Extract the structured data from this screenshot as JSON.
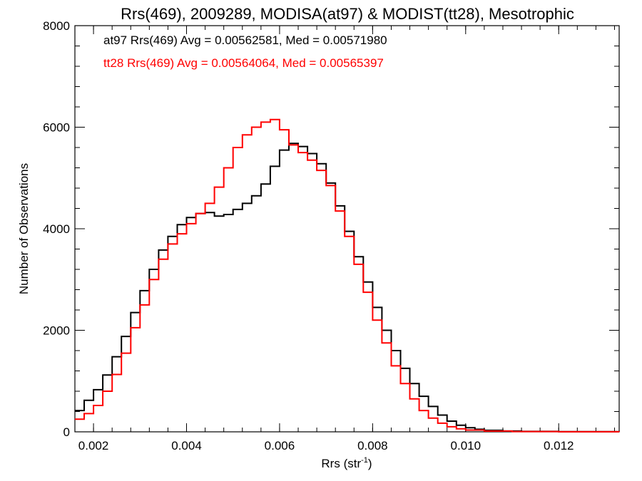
{
  "chart_data": {
    "type": "line",
    "step": true,
    "title": "Rrs(469), 2009289, MODISA(at97) & MODIST(tt28), Mesotrophic",
    "xlabel_base": "Rrs (str",
    "xlabel_sup": "-1",
    "xlabel_end": ")",
    "ylabel": "Number of Observations",
    "xlim": [
      0.0016,
      0.0133
    ],
    "ylim": [
      0,
      8000
    ],
    "x_ticks": [
      0.002,
      0.004,
      0.006,
      0.008,
      0.01,
      0.012
    ],
    "x_tick_labels": [
      "0.002",
      "0.004",
      "0.006",
      "0.008",
      "0.010",
      "0.012"
    ],
    "x_minor_step": 0.0004,
    "y_ticks": [
      0,
      2000,
      4000,
      6000,
      8000
    ],
    "y_tick_labels": [
      "0",
      "2000",
      "4000",
      "6000",
      "8000"
    ],
    "y_minor_step": 400,
    "grid": false,
    "annotations": [
      {
        "text": "at97 Rrs(469) Avg = 0.00562581, Med = 0.00571980",
        "color": "#000000"
      },
      {
        "text": "tt28 Rrs(469) Avg = 0.00564064, Med = 0.00565397",
        "color": "#ff0000"
      }
    ],
    "series": [
      {
        "color": "#000000",
        "points": [
          [
            0.0016,
            420
          ],
          [
            0.0018,
            620
          ],
          [
            0.002,
            830
          ],
          [
            0.0022,
            1120
          ],
          [
            0.0024,
            1480
          ],
          [
            0.0026,
            1880
          ],
          [
            0.0028,
            2350
          ],
          [
            0.003,
            2780
          ],
          [
            0.0032,
            3200
          ],
          [
            0.0034,
            3580
          ],
          [
            0.0036,
            3850
          ],
          [
            0.0038,
            4080
          ],
          [
            0.004,
            4220
          ],
          [
            0.0042,
            4300
          ],
          [
            0.0044,
            4320
          ],
          [
            0.0046,
            4250
          ],
          [
            0.0048,
            4280
          ],
          [
            0.005,
            4380
          ],
          [
            0.0052,
            4500
          ],
          [
            0.0054,
            4650
          ],
          [
            0.0056,
            4880
          ],
          [
            0.0058,
            5230
          ],
          [
            0.006,
            5550
          ],
          [
            0.0062,
            5680
          ],
          [
            0.0064,
            5620
          ],
          [
            0.0066,
            5480
          ],
          [
            0.0068,
            5280
          ],
          [
            0.007,
            4900
          ],
          [
            0.0072,
            4450
          ],
          [
            0.0074,
            3950
          ],
          [
            0.0076,
            3450
          ],
          [
            0.0078,
            2950
          ],
          [
            0.008,
            2450
          ],
          [
            0.0082,
            2000
          ],
          [
            0.0084,
            1600
          ],
          [
            0.0086,
            1250
          ],
          [
            0.0088,
            950
          ],
          [
            0.009,
            700
          ],
          [
            0.0092,
            500
          ],
          [
            0.0094,
            330
          ],
          [
            0.0096,
            210
          ],
          [
            0.0098,
            130
          ],
          [
            0.01,
            80
          ],
          [
            0.0102,
            50
          ],
          [
            0.0104,
            30
          ],
          [
            0.0108,
            15
          ],
          [
            0.0112,
            8
          ],
          [
            0.012,
            3
          ],
          [
            0.0133,
            0
          ]
        ]
      },
      {
        "color": "#ff0000",
        "points": [
          [
            0.0016,
            250
          ],
          [
            0.0018,
            360
          ],
          [
            0.002,
            520
          ],
          [
            0.0022,
            800
          ],
          [
            0.0024,
            1130
          ],
          [
            0.0026,
            1550
          ],
          [
            0.0028,
            2050
          ],
          [
            0.003,
            2500
          ],
          [
            0.0032,
            3000
          ],
          [
            0.0034,
            3400
          ],
          [
            0.0036,
            3700
          ],
          [
            0.0038,
            3900
          ],
          [
            0.004,
            4100
          ],
          [
            0.0042,
            4300
          ],
          [
            0.0044,
            4500
          ],
          [
            0.0046,
            4820
          ],
          [
            0.0048,
            5200
          ],
          [
            0.005,
            5600
          ],
          [
            0.0052,
            5850
          ],
          [
            0.0054,
            6000
          ],
          [
            0.0056,
            6100
          ],
          [
            0.0058,
            6150
          ],
          [
            0.006,
            5950
          ],
          [
            0.0062,
            5650
          ],
          [
            0.0064,
            5500
          ],
          [
            0.0066,
            5350
          ],
          [
            0.0068,
            5150
          ],
          [
            0.007,
            4850
          ],
          [
            0.0072,
            4350
          ],
          [
            0.0074,
            3850
          ],
          [
            0.0076,
            3300
          ],
          [
            0.0078,
            2750
          ],
          [
            0.008,
            2200
          ],
          [
            0.0082,
            1750
          ],
          [
            0.0084,
            1300
          ],
          [
            0.0086,
            950
          ],
          [
            0.0088,
            650
          ],
          [
            0.009,
            420
          ],
          [
            0.0092,
            270
          ],
          [
            0.0094,
            170
          ],
          [
            0.0096,
            100
          ],
          [
            0.0098,
            60
          ],
          [
            0.01,
            35
          ],
          [
            0.0104,
            15
          ],
          [
            0.011,
            5
          ],
          [
            0.012,
            2
          ],
          [
            0.0133,
            0
          ]
        ]
      }
    ]
  }
}
